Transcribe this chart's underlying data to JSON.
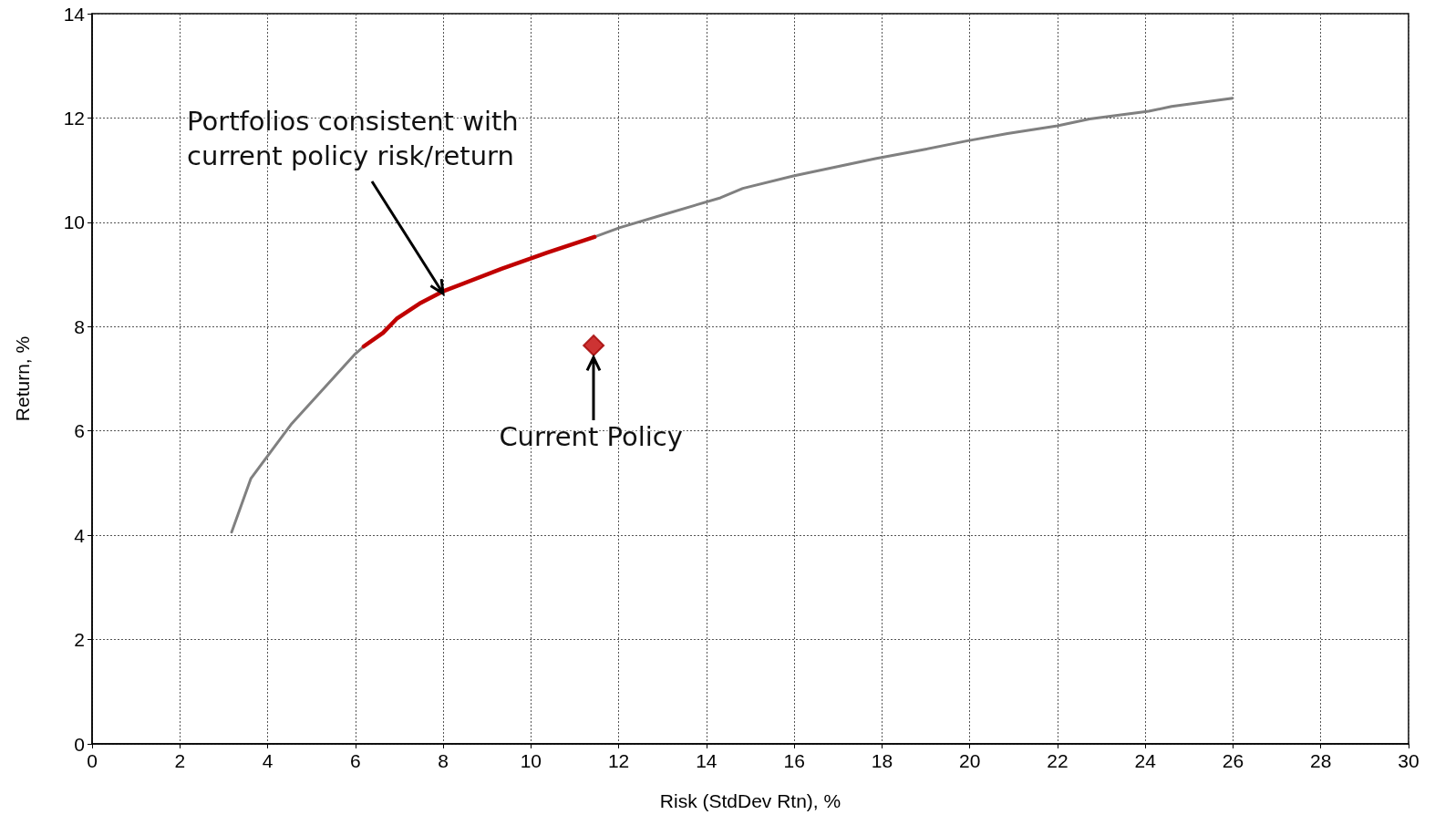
{
  "chart_data": {
    "type": "line",
    "xlabel": "Risk (StdDev Rtn), %",
    "ylabel": "Return, %",
    "xlim": [
      0,
      30
    ],
    "xticks": [
      0,
      2,
      4,
      6,
      8,
      10,
      12,
      14,
      16,
      18,
      20,
      22,
      24,
      26,
      28,
      30
    ],
    "ylim": [
      0,
      14
    ],
    "yticks": [
      0,
      2,
      4,
      6,
      8,
      10,
      12,
      14
    ],
    "grid": true,
    "series": [
      {
        "type": "line",
        "color": "#808080",
        "marker": "none",
        "x": [
          3.18,
          3.62,
          4.55,
          6.0,
          6.19,
          6.63,
          6.94,
          7.46,
          7.98,
          9.33,
          10.37,
          11.45,
          12.03,
          13.07,
          14.32,
          14.83,
          15.98,
          17.85,
          18.99,
          19.93,
          20.86,
          22.0,
          22.73,
          24.08,
          24.6,
          25.99
        ],
        "values": [
          4.06,
          5.09,
          6.14,
          7.48,
          7.62,
          null,
          null,
          null,
          null,
          null,
          null,
          9.72,
          9.9,
          10.16,
          10.47,
          10.65,
          10.89,
          11.22,
          11.4,
          11.56,
          11.7,
          11.85,
          11.98,
          12.13,
          12.22,
          12.38
        ]
      },
      {
        "type": "line",
        "color": "#c00000",
        "marker": "none",
        "x": [
          6.19,
          6.63,
          6.94,
          7.46,
          7.98,
          9.33,
          10.37,
          11.45
        ],
        "values": [
          7.62,
          7.88,
          8.15,
          8.44,
          8.67,
          9.11,
          9.42,
          9.72
        ]
      },
      {
        "type": "scatter",
        "color": "#c00000",
        "marker": "diamond",
        "x": [
          11.43
        ],
        "values": [
          7.64
        ]
      }
    ],
    "annotations": [
      {
        "text": "Portfolios consistent with current policy risk/return",
        "x": 8,
        "y": 8.6
      },
      {
        "text": "Current Policy",
        "x": 11.43,
        "y": 7.64
      }
    ]
  }
}
